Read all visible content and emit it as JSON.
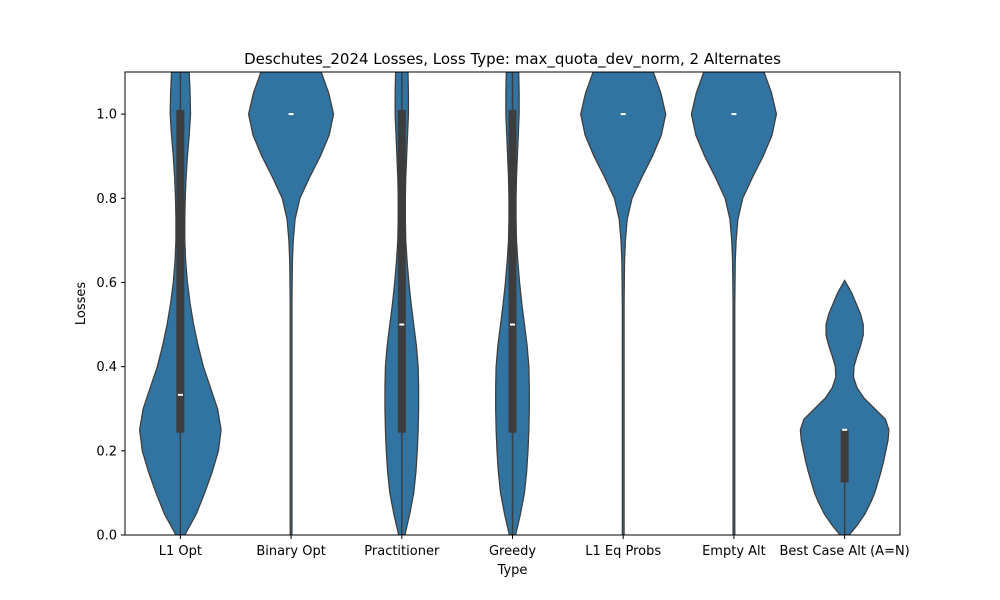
{
  "chart_data": {
    "type": "violin",
    "title": "Deschutes_2024 Losses, Loss Type: max_quota_dev_norm, 2 Alternates",
    "xlabel": "Type",
    "ylabel": "Losses",
    "ylim": [
      0,
      1.1
    ],
    "yticks": [
      0.0,
      0.2,
      0.4,
      0.6,
      0.8,
      1.0
    ],
    "ytick_labels": [
      "0.0",
      "0.2",
      "0.4",
      "0.6",
      "0.8",
      "1.0"
    ],
    "grid": false,
    "categories": [
      "L1 Opt",
      "Binary Opt",
      "Practitioner",
      "Greedy",
      "L1 Eq Probs",
      "Empty Alt",
      "Best Case Alt (A=N)"
    ],
    "colors": {
      "violin_fill": "#3274a1",
      "violin_edge": "#3d3d3d",
      "box": "#3d3d3d",
      "median": "#ffffff"
    },
    "series": [
      {
        "category": "L1 Opt",
        "summary": {
          "min": 0.0,
          "q1": 0.243,
          "median": 0.333,
          "q3": 1.01,
          "max": 1.1
        },
        "profile": [
          [
            0.0,
            0.1
          ],
          [
            0.05,
            0.36
          ],
          [
            0.1,
            0.55
          ],
          [
            0.15,
            0.72
          ],
          [
            0.2,
            0.86
          ],
          [
            0.25,
            0.92
          ],
          [
            0.3,
            0.84
          ],
          [
            0.35,
            0.68
          ],
          [
            0.4,
            0.52
          ],
          [
            0.45,
            0.4
          ],
          [
            0.5,
            0.3
          ],
          [
            0.55,
            0.22
          ],
          [
            0.6,
            0.16
          ],
          [
            0.65,
            0.12
          ],
          [
            0.7,
            0.1
          ],
          [
            0.75,
            0.1
          ],
          [
            0.8,
            0.11
          ],
          [
            0.85,
            0.13
          ],
          [
            0.9,
            0.16
          ],
          [
            0.95,
            0.2
          ],
          [
            1.0,
            0.23
          ],
          [
            1.05,
            0.22
          ],
          [
            1.1,
            0.2
          ]
        ]
      },
      {
        "category": "Binary Opt",
        "summary": {
          "median": 1.0
        },
        "profile": [
          [
            0.0,
            0.02
          ],
          [
            0.2,
            0.02
          ],
          [
            0.4,
            0.02
          ],
          [
            0.55,
            0.02
          ],
          [
            0.65,
            0.03
          ],
          [
            0.7,
            0.05
          ],
          [
            0.75,
            0.09
          ],
          [
            0.8,
            0.2
          ],
          [
            0.85,
            0.42
          ],
          [
            0.9,
            0.66
          ],
          [
            0.95,
            0.86
          ],
          [
            1.0,
            0.96
          ],
          [
            1.05,
            0.85
          ],
          [
            1.1,
            0.68
          ]
        ]
      },
      {
        "category": "Practitioner",
        "summary": {
          "min": 0.0,
          "q1": 0.243,
          "median": 0.5,
          "q3": 1.01,
          "max": 1.1
        },
        "profile": [
          [
            0.0,
            0.07
          ],
          [
            0.05,
            0.18
          ],
          [
            0.1,
            0.27
          ],
          [
            0.15,
            0.32
          ],
          [
            0.2,
            0.35
          ],
          [
            0.25,
            0.37
          ],
          [
            0.3,
            0.38
          ],
          [
            0.35,
            0.38
          ],
          [
            0.4,
            0.37
          ],
          [
            0.45,
            0.33
          ],
          [
            0.5,
            0.27
          ],
          [
            0.55,
            0.21
          ],
          [
            0.6,
            0.16
          ],
          [
            0.65,
            0.12
          ],
          [
            0.7,
            0.09
          ],
          [
            0.75,
            0.08
          ],
          [
            0.8,
            0.08
          ],
          [
            0.85,
            0.09
          ],
          [
            0.9,
            0.11
          ],
          [
            0.95,
            0.13
          ],
          [
            1.0,
            0.15
          ],
          [
            1.05,
            0.15
          ],
          [
            1.1,
            0.14
          ]
        ]
      },
      {
        "category": "Greedy",
        "summary": {
          "min": 0.0,
          "q1": 0.243,
          "median": 0.5,
          "q3": 1.01,
          "max": 1.1
        },
        "profile": [
          [
            0.0,
            0.07
          ],
          [
            0.05,
            0.18
          ],
          [
            0.1,
            0.27
          ],
          [
            0.15,
            0.32
          ],
          [
            0.2,
            0.35
          ],
          [
            0.25,
            0.37
          ],
          [
            0.3,
            0.38
          ],
          [
            0.35,
            0.38
          ],
          [
            0.4,
            0.37
          ],
          [
            0.45,
            0.33
          ],
          [
            0.5,
            0.27
          ],
          [
            0.55,
            0.21
          ],
          [
            0.6,
            0.16
          ],
          [
            0.65,
            0.12
          ],
          [
            0.7,
            0.09
          ],
          [
            0.75,
            0.08
          ],
          [
            0.8,
            0.08
          ],
          [
            0.85,
            0.09
          ],
          [
            0.9,
            0.11
          ],
          [
            0.95,
            0.13
          ],
          [
            1.0,
            0.15
          ],
          [
            1.05,
            0.15
          ],
          [
            1.1,
            0.14
          ]
        ]
      },
      {
        "category": "L1 Eq Probs",
        "summary": {
          "median": 1.0
        },
        "profile": [
          [
            0.0,
            0.02
          ],
          [
            0.2,
            0.02
          ],
          [
            0.4,
            0.02
          ],
          [
            0.55,
            0.02
          ],
          [
            0.65,
            0.03
          ],
          [
            0.7,
            0.05
          ],
          [
            0.75,
            0.09
          ],
          [
            0.8,
            0.2
          ],
          [
            0.85,
            0.42
          ],
          [
            0.9,
            0.66
          ],
          [
            0.95,
            0.86
          ],
          [
            1.0,
            0.96
          ],
          [
            1.05,
            0.85
          ],
          [
            1.1,
            0.68
          ]
        ]
      },
      {
        "category": "Empty Alt",
        "summary": {
          "median": 1.0
        },
        "profile": [
          [
            0.0,
            0.02
          ],
          [
            0.2,
            0.02
          ],
          [
            0.4,
            0.02
          ],
          [
            0.55,
            0.02
          ],
          [
            0.65,
            0.03
          ],
          [
            0.7,
            0.05
          ],
          [
            0.75,
            0.09
          ],
          [
            0.8,
            0.2
          ],
          [
            0.85,
            0.42
          ],
          [
            0.9,
            0.66
          ],
          [
            0.95,
            0.86
          ],
          [
            1.0,
            0.96
          ],
          [
            1.05,
            0.85
          ],
          [
            1.1,
            0.68
          ]
        ]
      },
      {
        "category": "Best Case Alt (A=N)",
        "summary": {
          "min": 0.0,
          "q1": 0.125,
          "median": 0.25,
          "q3": 0.25,
          "max": 0.25
        },
        "profile": [
          [
            0.0,
            0.1
          ],
          [
            0.02,
            0.26
          ],
          [
            0.05,
            0.46
          ],
          [
            0.08,
            0.6
          ],
          [
            0.1,
            0.68
          ],
          [
            0.125,
            0.75
          ],
          [
            0.15,
            0.82
          ],
          [
            0.175,
            0.88
          ],
          [
            0.2,
            0.93
          ],
          [
            0.225,
            0.98
          ],
          [
            0.25,
            1.0
          ],
          [
            0.275,
            0.92
          ],
          [
            0.3,
            0.68
          ],
          [
            0.325,
            0.44
          ],
          [
            0.35,
            0.28
          ],
          [
            0.375,
            0.2
          ],
          [
            0.4,
            0.21
          ],
          [
            0.425,
            0.28
          ],
          [
            0.45,
            0.36
          ],
          [
            0.475,
            0.42
          ],
          [
            0.5,
            0.42
          ],
          [
            0.525,
            0.36
          ],
          [
            0.55,
            0.26
          ],
          [
            0.575,
            0.16
          ],
          [
            0.59,
            0.08
          ],
          [
            0.605,
            0.0
          ]
        ]
      }
    ]
  }
}
